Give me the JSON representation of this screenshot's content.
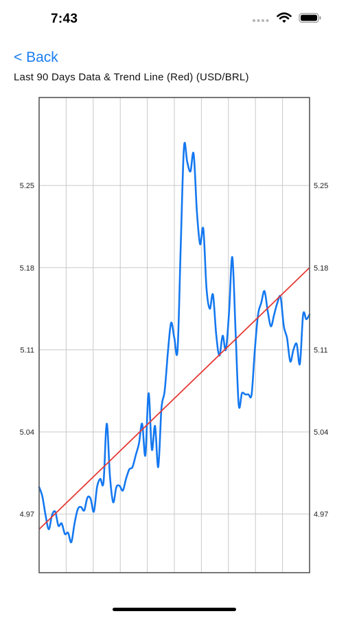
{
  "status_bar": {
    "time": "7:43",
    "icons": [
      "signal-dots-icon",
      "wifi-icon",
      "battery-icon"
    ]
  },
  "nav": {
    "back_label": "< Back"
  },
  "title": "Last 90 Days Data & Trend Line (Red) (USD/BRL)",
  "colors": {
    "accent": "#1a7cf2",
    "series": "#1478f0",
    "trend": "#e53935",
    "grid": "#c8c8c8",
    "frame": "#555555"
  },
  "chart_data": {
    "type": "line",
    "title": "Last 90 Days Data & Trend Line (Red) (USD/BRL)",
    "xlabel": "",
    "ylabel": "",
    "xlim": [
      0,
      90
    ],
    "ylim": [
      4.92,
      5.325
    ],
    "y_ticks": [
      4.97,
      5.04,
      5.11,
      5.18,
      5.25
    ],
    "y_tick_labels": [
      "4.97",
      "5.04",
      "5.11",
      "5.18",
      "5.25"
    ],
    "y_axis_sides": [
      "left",
      "right"
    ],
    "x_gridlines": 9,
    "grid": true,
    "legend": "none",
    "series": [
      {
        "values": [
          4.993,
          4.985,
          4.969,
          4.957,
          4.969,
          4.972,
          4.96,
          4.962,
          4.953,
          4.954,
          4.946,
          4.962,
          4.974,
          4.976,
          4.973,
          4.984,
          4.983,
          4.972,
          4.993,
          5.0,
          4.997,
          5.047,
          5.002,
          4.98,
          4.993,
          4.994,
          4.99,
          5.0,
          5.008,
          5.01,
          5.02,
          5.03,
          5.047,
          5.02,
          5.073,
          5.025,
          5.045,
          5.01,
          5.06,
          5.075,
          5.108,
          5.133,
          5.12,
          5.11,
          5.2,
          5.283,
          5.27,
          5.262,
          5.277,
          5.228,
          5.2,
          5.213,
          5.162,
          5.145,
          5.157,
          5.123,
          5.105,
          5.122,
          5.11,
          5.142,
          5.189,
          5.127,
          5.063,
          5.073,
          5.072,
          5.072,
          5.072,
          5.11,
          5.14,
          5.15,
          5.16,
          5.143,
          5.13,
          5.14,
          5.15,
          5.155,
          5.13,
          5.12,
          5.1,
          5.11,
          5.115,
          5.098,
          5.14,
          5.136,
          5.14
        ]
      }
    ],
    "trend_line": {
      "start": 4.957,
      "end": 5.18
    }
  }
}
